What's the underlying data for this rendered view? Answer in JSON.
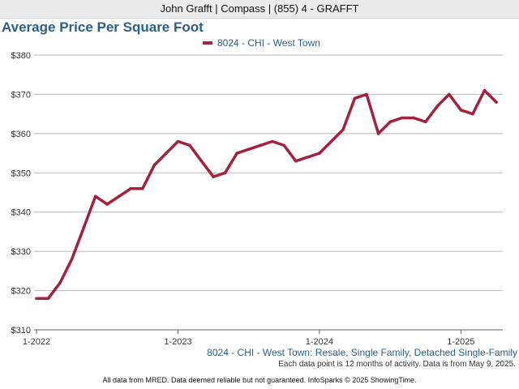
{
  "header": {
    "text": "John Grafft | Compass | (855) 4 - GRAFFT"
  },
  "footer": {
    "subtitle": "8024 - CHI - West Town: Resale, Single Family, Detached Single-Family",
    "note": "Each data point is 12 months of activity. Data is from May 9, 2025.",
    "disclaimer": "All data from MRED. Data deemed reliable but not guaranteed. InfoSparks © 2025 ShowingTime."
  },
  "colors": {
    "series": "#a3213f",
    "title": "#2c5f8a",
    "grid": "#b8b8b8"
  },
  "chart_data": {
    "type": "line",
    "title": "Average Price Per Square Foot",
    "xlabel": "",
    "ylabel": "",
    "ylim": [
      310,
      380
    ],
    "yticks": [
      310,
      320,
      330,
      340,
      350,
      360,
      370,
      380
    ],
    "ytick_labels": [
      "$310",
      "$320",
      "$330",
      "$340",
      "$350",
      "$360",
      "$370",
      "$380"
    ],
    "xlim": [
      "2022-01",
      "2025-04"
    ],
    "xticks": [
      "2022-01",
      "2023-01",
      "2024-01",
      "2025-01"
    ],
    "xtick_labels": [
      "1-2022",
      "1-2023",
      "1-2024",
      "1-2025"
    ],
    "grid": true,
    "legend": "top-center",
    "series": [
      {
        "name": "8024 - CHI - West Town",
        "x": [
          "2022-01",
          "2022-02",
          "2022-03",
          "2022-04",
          "2022-05",
          "2022-06",
          "2022-07",
          "2022-08",
          "2022-09",
          "2022-10",
          "2022-11",
          "2022-12",
          "2023-01",
          "2023-02",
          "2023-03",
          "2023-04",
          "2023-05",
          "2023-06",
          "2023-07",
          "2023-08",
          "2023-09",
          "2023-10",
          "2023-11",
          "2023-12",
          "2024-01",
          "2024-02",
          "2024-03",
          "2024-04",
          "2024-05",
          "2024-06",
          "2024-07",
          "2024-08",
          "2024-09",
          "2024-10",
          "2024-11",
          "2024-12",
          "2025-01",
          "2025-02",
          "2025-03",
          "2025-04"
        ],
        "values": [
          318,
          318,
          322,
          328,
          336,
          344,
          342,
          344,
          346,
          346,
          352,
          355,
          358,
          357,
          353,
          349,
          350,
          355,
          356,
          357,
          358,
          357,
          353,
          354,
          355,
          358,
          361,
          369,
          370,
          360,
          363,
          364,
          364,
          363,
          367,
          370,
          366,
          365,
          371,
          368
        ]
      }
    ]
  }
}
